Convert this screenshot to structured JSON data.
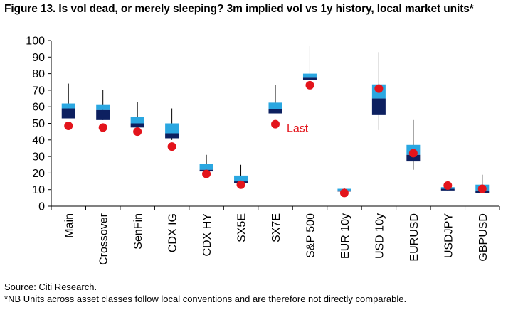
{
  "title": "Figure 13. Is vol dead, or merely sleeping? 3m implied vol vs 1y history, local market units*",
  "source": "Source: Citi Research.",
  "note": "*NB Units across asset classes follow local conventions and are therefore not directly comparable.",
  "colors": {
    "upper_box": "#2aa7e1",
    "lower_box": "#0d2060",
    "whisker": "#000000",
    "last_dot": "#e3141b",
    "annotation": "#e3141b"
  },
  "chart_data": {
    "type": "box",
    "ylim": [
      0,
      100
    ],
    "yticks": [
      0,
      10,
      20,
      30,
      40,
      50,
      60,
      70,
      80,
      90,
      100
    ],
    "grid": false,
    "legend": "none",
    "annotation": {
      "text": "Last",
      "category": "SX7E"
    },
    "categories": [
      "Main",
      "Crossover",
      "SenFin",
      "CDX IG",
      "CDX HY",
      "SX5E",
      "SX7E",
      "S&P 500",
      "EUR 10y",
      "USD 10y",
      "EURUSD",
      "USDJPY",
      "GBPUSD"
    ],
    "series": [
      {
        "category": "Main",
        "min": 53,
        "q1": 53,
        "median": 59,
        "q3": 62,
        "max": 74,
        "last": 48.5
      },
      {
        "category": "Crossover",
        "min": 52,
        "q1": 52,
        "median": 58,
        "q3": 61.5,
        "max": 70,
        "last": 47.5
      },
      {
        "category": "SenFin",
        "min": 43,
        "q1": 47.5,
        "median": 50,
        "q3": 54,
        "max": 63,
        "last": 45
      },
      {
        "category": "CDX IG",
        "min": 40,
        "q1": 41,
        "median": 44,
        "q3": 50,
        "max": 59,
        "last": 36
      },
      {
        "category": "CDX HY",
        "min": 21,
        "q1": 21,
        "median": 22,
        "q3": 25.5,
        "max": 31,
        "last": 19.5
      },
      {
        "category": "SX5E",
        "min": 14,
        "q1": 14,
        "median": 15,
        "q3": 18.5,
        "max": 25,
        "last": 13
      },
      {
        "category": "SX7E",
        "min": 56,
        "q1": 56,
        "median": 58.5,
        "q3": 62.5,
        "max": 73,
        "last": 49.5
      },
      {
        "category": "S&P 500",
        "min": 76,
        "q1": 76,
        "median": 77.5,
        "q3": 80,
        "max": 97,
        "last": 73
      },
      {
        "category": "EUR 10y",
        "min": 8.5,
        "q1": 9,
        "median": 9.5,
        "q3": 10.5,
        "max": 11,
        "last": 8
      },
      {
        "category": "USD 10y",
        "min": 46,
        "q1": 55,
        "median": 65,
        "q3": 73.5,
        "max": 93,
        "last": 71
      },
      {
        "category": "EURUSD",
        "min": 22,
        "q1": 27,
        "median": 31,
        "q3": 37,
        "max": 52,
        "last": 32
      },
      {
        "category": "USDJPY",
        "min": 9,
        "q1": 9.5,
        "median": 10.5,
        "q3": 11.5,
        "max": 13,
        "last": 12.5
      },
      {
        "category": "GBPUSD",
        "min": 8,
        "q1": 8,
        "median": 9.5,
        "q3": 13,
        "max": 19,
        "last": 10.5
      }
    ]
  }
}
